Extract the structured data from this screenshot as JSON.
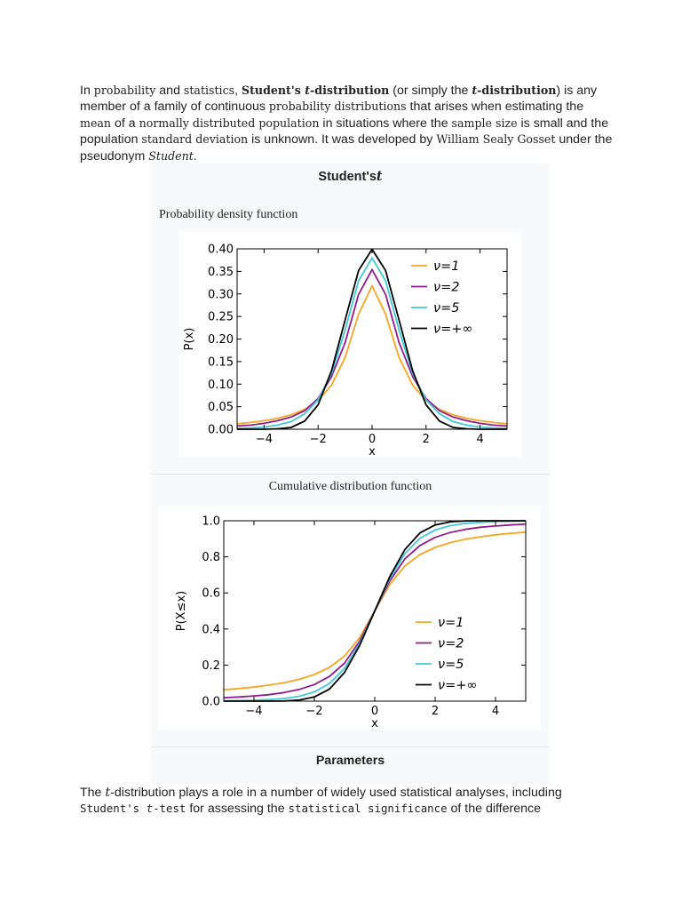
{
  "intro": {
    "t01": "In ",
    "link_probability": "probability",
    "t02": " and ",
    "link_statistics": "statistics",
    "t03": ", ",
    "bold_students": "Student's ",
    "bold_t1": "t",
    "bold_dist1": "-distribution",
    "t04": " (or simply the ",
    "bold_t2": "t",
    "bold_dist2": "-distribution",
    "t05": ") is any member of a family of continuous ",
    "link_prob_distributions": "probability distributions",
    "t06": " that arises when estimating the ",
    "link_mean": "mean",
    "t07": " of a ",
    "link_normal_population": "normally distributed population",
    "t08": " in situations where the ",
    "link_sample_size": "sample size",
    "t09": " is small and the population ",
    "link_std_dev": "standard deviation",
    "t10": " is unknown. It was developed by ",
    "link_gosset": "William Sealy Gosset",
    "t11": " under the pseudonym ",
    "pseudonym": "Student",
    "t12": "."
  },
  "infobox": {
    "title_prefix": "Student's",
    "title_var": "t",
    "pdf_heading": "Probability density function",
    "cdf_heading": "Cumulative distribution function",
    "parameters": "Parameters"
  },
  "outro": {
    "t01": "The ",
    "t_var": "t",
    "t02": "-distribution plays a role in a number of widely used statistical analyses, including ",
    "link_ttest_a": "Student's ",
    "link_ttest_t": "t",
    "link_ttest_b": "-test",
    "t03": " for assessing the ",
    "link_significance": "statistical significance",
    "t04": " of the difference"
  },
  "chart_data": [
    {
      "type": "line",
      "title": "",
      "xlabel": "x",
      "ylabel": "P(x)",
      "xlim": [
        -5,
        5
      ],
      "ylim": [
        0,
        0.4
      ],
      "xticks": [
        "−4",
        "−2",
        "0",
        "2",
        "4"
      ],
      "yticks": [
        "0.00",
        "0.05",
        "0.10",
        "0.15",
        "0.20",
        "0.25",
        "0.30",
        "0.35",
        "0.40"
      ],
      "legend_position": "top-right",
      "series": [
        {
          "name": "ν=1",
          "nu": 1,
          "color": "#f5a623"
        },
        {
          "name": "ν=2",
          "nu": 2,
          "color": "#8e1d8e"
        },
        {
          "name": "ν=5",
          "nu": 5,
          "color": "#40c8d8"
        },
        {
          "name": "ν=+∞",
          "nu": "inf",
          "color": "#000000"
        }
      ],
      "x": [
        -5,
        -4.5,
        -4,
        -3.5,
        -3,
        -2.5,
        -2,
        -1.5,
        -1,
        -0.5,
        0,
        0.5,
        1,
        1.5,
        2,
        2.5,
        3,
        3.5,
        4,
        4.5,
        5
      ],
      "values": {
        "nu1": [
          0.012,
          0.015,
          0.019,
          0.024,
          0.032,
          0.044,
          0.064,
          0.098,
          0.159,
          0.255,
          0.318,
          0.255,
          0.159,
          0.098,
          0.064,
          0.044,
          0.032,
          0.024,
          0.019,
          0.015,
          0.012
        ],
        "nu2": [
          0.007,
          0.009,
          0.013,
          0.019,
          0.027,
          0.041,
          0.068,
          0.117,
          0.192,
          0.299,
          0.354,
          0.299,
          0.192,
          0.117,
          0.068,
          0.041,
          0.027,
          0.019,
          0.013,
          0.009,
          0.007
        ],
        "nu5": [
          0.002,
          0.003,
          0.005,
          0.009,
          0.017,
          0.034,
          0.065,
          0.124,
          0.22,
          0.329,
          0.38,
          0.329,
          0.22,
          0.124,
          0.065,
          0.034,
          0.017,
          0.009,
          0.005,
          0.003,
          0.002
        ],
        "nuinf": [
          0.0,
          0.0,
          0.0,
          0.001,
          0.004,
          0.018,
          0.054,
          0.13,
          0.242,
          0.352,
          0.399,
          0.352,
          0.242,
          0.13,
          0.054,
          0.018,
          0.004,
          0.001,
          0.0,
          0.0,
          0.0
        ]
      }
    },
    {
      "type": "line",
      "title": "",
      "xlabel": "x",
      "ylabel": "P(X≤x)",
      "xlim": [
        -5,
        5
      ],
      "ylim": [
        0,
        1
      ],
      "xticks": [
        "−4",
        "−2",
        "0",
        "2",
        "4"
      ],
      "yticks": [
        "0.0",
        "0.2",
        "0.4",
        "0.6",
        "0.8",
        "1.0"
      ],
      "legend_position": "lower-right",
      "series": [
        {
          "name": "ν=1",
          "nu": 1,
          "color": "#f5a623"
        },
        {
          "name": "ν=2",
          "nu": 2,
          "color": "#8e1d8e"
        },
        {
          "name": "ν=5",
          "nu": 5,
          "color": "#40c8d8"
        },
        {
          "name": "ν=+∞",
          "nu": "inf",
          "color": "#000000"
        }
      ],
      "x": [
        -5,
        -4.5,
        -4,
        -3.5,
        -3,
        -2.5,
        -2,
        -1.5,
        -1,
        -0.5,
        0,
        0.5,
        1,
        1.5,
        2,
        2.5,
        3,
        3.5,
        4,
        4.5,
        5
      ],
      "values": {
        "nu1": [
          0.063,
          0.07,
          0.078,
          0.089,
          0.102,
          0.121,
          0.148,
          0.187,
          0.25,
          0.352,
          0.5,
          0.648,
          0.75,
          0.813,
          0.852,
          0.879,
          0.898,
          0.911,
          0.922,
          0.93,
          0.937
        ],
        "nu2": [
          0.019,
          0.023,
          0.029,
          0.036,
          0.048,
          0.065,
          0.092,
          0.137,
          0.211,
          0.333,
          0.5,
          0.667,
          0.789,
          0.863,
          0.908,
          0.935,
          0.952,
          0.964,
          0.971,
          0.977,
          0.981
        ],
        "nu5": [
          0.002,
          0.003,
          0.005,
          0.009,
          0.015,
          0.027,
          0.051,
          0.097,
          0.182,
          0.319,
          0.5,
          0.681,
          0.818,
          0.903,
          0.949,
          0.973,
          0.985,
          0.991,
          0.995,
          0.997,
          0.998
        ],
        "nuinf": [
          0.0,
          0.0,
          0.0,
          0.0,
          0.001,
          0.006,
          0.023,
          0.067,
          0.159,
          0.309,
          0.5,
          0.691,
          0.841,
          0.933,
          0.977,
          0.994,
          0.999,
          1.0,
          1.0,
          1.0,
          1.0
        ]
      }
    }
  ]
}
